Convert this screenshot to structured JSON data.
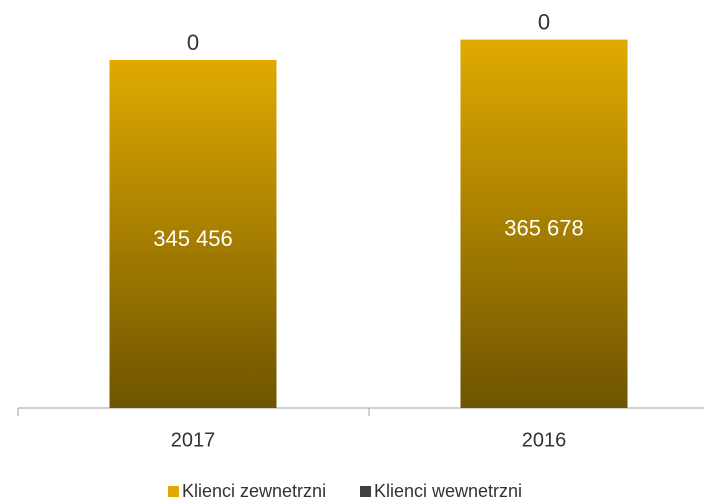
{
  "chart_data": {
    "type": "bar",
    "stacked": true,
    "categories": [
      "2017",
      "2016"
    ],
    "series": [
      {
        "name": "Klienci zewnetrzni",
        "color": "#e0aa00",
        "values": [
          345456,
          365678
        ],
        "value_labels": [
          "345 456",
          "365 678"
        ]
      },
      {
        "name": "Klienci wewnetrzni",
        "color": "#404040",
        "values": [
          0,
          0
        ]
      }
    ],
    "ylim": [
      0,
      400000
    ],
    "legend": "bottom"
  }
}
